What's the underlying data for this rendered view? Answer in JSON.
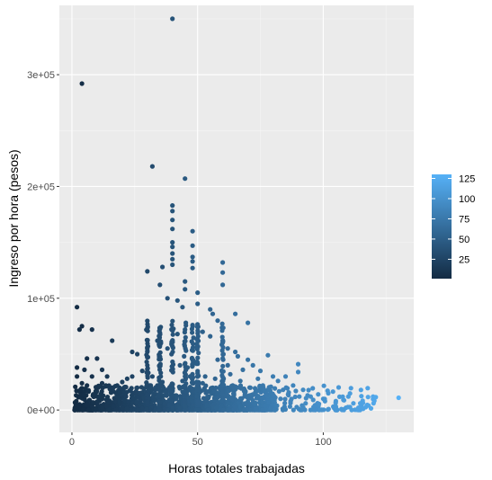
{
  "chart_data": {
    "type": "scatter",
    "title": "",
    "xlabel": "Horas totales trabajadas",
    "ylabel": "Ingreso por hora (pesos)",
    "xlim": [
      -5,
      136
    ],
    "ylim": [
      -20000,
      362000
    ],
    "x_ticks": [
      {
        "value": 0,
        "label": "0"
      },
      {
        "value": 50,
        "label": "50"
      },
      {
        "value": 100,
        "label": "100"
      }
    ],
    "y_ticks": [
      {
        "value": 0,
        "label": "0e+00"
      },
      {
        "value": 100000,
        "label": "1e+05"
      },
      {
        "value": 200000,
        "label": "2e+05"
      },
      {
        "value": 300000,
        "label": "3e+05"
      }
    ],
    "color_scale": {
      "variable": "x",
      "low_color": "#132B43",
      "high_color": "#56B1F7",
      "domain": [
        1,
        130
      ],
      "ticks": [
        25,
        50,
        75,
        100,
        125
      ],
      "tick_labels": [
        "25",
        "50",
        "75",
        "100",
        "125"
      ]
    },
    "grid": true,
    "legend_position": "right",
    "panel_background": "#EBEBEB",
    "points": [
      [
        40,
        350000
      ],
      [
        4,
        292000
      ],
      [
        32,
        218000
      ],
      [
        45,
        207000
      ],
      [
        40,
        183000
      ],
      [
        40,
        178000
      ],
      [
        40,
        170000
      ],
      [
        40,
        162000
      ],
      [
        40,
        150000
      ],
      [
        40,
        146000
      ],
      [
        40,
        140000
      ],
      [
        40,
        135000
      ],
      [
        40,
        130000
      ],
      [
        48,
        160000
      ],
      [
        48,
        147000
      ],
      [
        48,
        137000
      ],
      [
        48,
        133000
      ],
      [
        48,
        127000
      ],
      [
        60,
        132000
      ],
      [
        60,
        123000
      ],
      [
        60,
        112000
      ],
      [
        45,
        115000
      ],
      [
        45,
        108000
      ],
      [
        36,
        128000
      ],
      [
        30,
        124000
      ],
      [
        35,
        112000
      ],
      [
        38,
        100000
      ],
      [
        42,
        98000
      ],
      [
        44,
        92000
      ],
      [
        50,
        105000
      ],
      [
        50,
        95000
      ],
      [
        55,
        90000
      ],
      [
        56,
        86000
      ],
      [
        58,
        80000
      ],
      [
        65,
        86000
      ],
      [
        70,
        78000
      ],
      [
        2,
        92000
      ],
      [
        4,
        75000
      ],
      [
        3,
        72000
      ],
      [
        8,
        72000
      ],
      [
        16,
        62000
      ],
      [
        24,
        52000
      ],
      [
        26,
        50000
      ],
      [
        6,
        46000
      ],
      [
        10,
        46000
      ],
      [
        30,
        55000
      ],
      [
        30,
        52000
      ],
      [
        34,
        62000
      ],
      [
        35,
        58000
      ],
      [
        38,
        55000
      ],
      [
        42,
        68000
      ],
      [
        45,
        72000
      ],
      [
        48,
        76000
      ],
      [
        52,
        70000
      ],
      [
        55,
        66000
      ],
      [
        60,
        62000
      ],
      [
        62,
        55000
      ],
      [
        65,
        52000
      ],
      [
        66,
        48000
      ],
      [
        70,
        45000
      ],
      [
        72,
        40000
      ],
      [
        75,
        35000
      ],
      [
        80,
        30000
      ],
      [
        82,
        26000
      ],
      [
        85,
        30000
      ],
      [
        90,
        41000
      ],
      [
        90,
        34000
      ],
      [
        78,
        49000
      ],
      [
        88,
        22000
      ],
      [
        92,
        18000
      ],
      [
        95,
        12000
      ],
      [
        98,
        14000
      ],
      [
        100,
        10000
      ],
      [
        102,
        15000
      ],
      [
        105,
        8000
      ],
      [
        108,
        9000
      ],
      [
        110,
        12000
      ],
      [
        112,
        6000
      ],
      [
        115,
        5000
      ],
      [
        118,
        4000
      ],
      [
        120,
        6000
      ],
      [
        130,
        11000
      ],
      [
        58,
        45000
      ],
      [
        62,
        40000
      ],
      [
        68,
        36000
      ],
      [
        74,
        28000
      ],
      [
        76,
        22000
      ],
      [
        84,
        18000
      ],
      [
        86,
        14000
      ],
      [
        96,
        9000
      ],
      [
        2,
        38000
      ],
      [
        2,
        30000
      ],
      [
        5,
        36000
      ],
      [
        8,
        30000
      ],
      [
        4,
        24000
      ],
      [
        6,
        22000
      ],
      [
        12,
        24000
      ],
      [
        18,
        22000
      ],
      [
        20,
        25000
      ],
      [
        24,
        30000
      ],
      [
        28,
        35000
      ],
      [
        30,
        40000
      ],
      [
        32,
        30000
      ],
      [
        36,
        25000
      ],
      [
        43,
        40000
      ],
      [
        46,
        38000
      ],
      [
        50,
        33000
      ],
      [
        53,
        30000
      ],
      [
        57,
        28000
      ],
      [
        63,
        32000
      ],
      [
        67,
        26000
      ],
      [
        71,
        20000
      ],
      [
        73,
        16000
      ],
      [
        79,
        12000
      ],
      [
        83,
        10000
      ],
      [
        87,
        8000
      ],
      [
        93,
        6000
      ],
      [
        97,
        4000
      ],
      [
        104,
        3000
      ],
      [
        109,
        2000
      ],
      [
        114,
        2000
      ],
      [
        119,
        1500
      ],
      [
        12,
        36000
      ],
      [
        14,
        30000
      ],
      [
        22,
        28000
      ],
      [
        26,
        20000
      ],
      [
        34,
        22000
      ],
      [
        38,
        18000
      ],
      [
        44,
        26000
      ],
      [
        47,
        30000
      ],
      [
        52,
        24000
      ],
      [
        56,
        20000
      ],
      [
        59,
        18000
      ],
      [
        64,
        22000
      ],
      [
        69,
        16000
      ]
    ]
  }
}
